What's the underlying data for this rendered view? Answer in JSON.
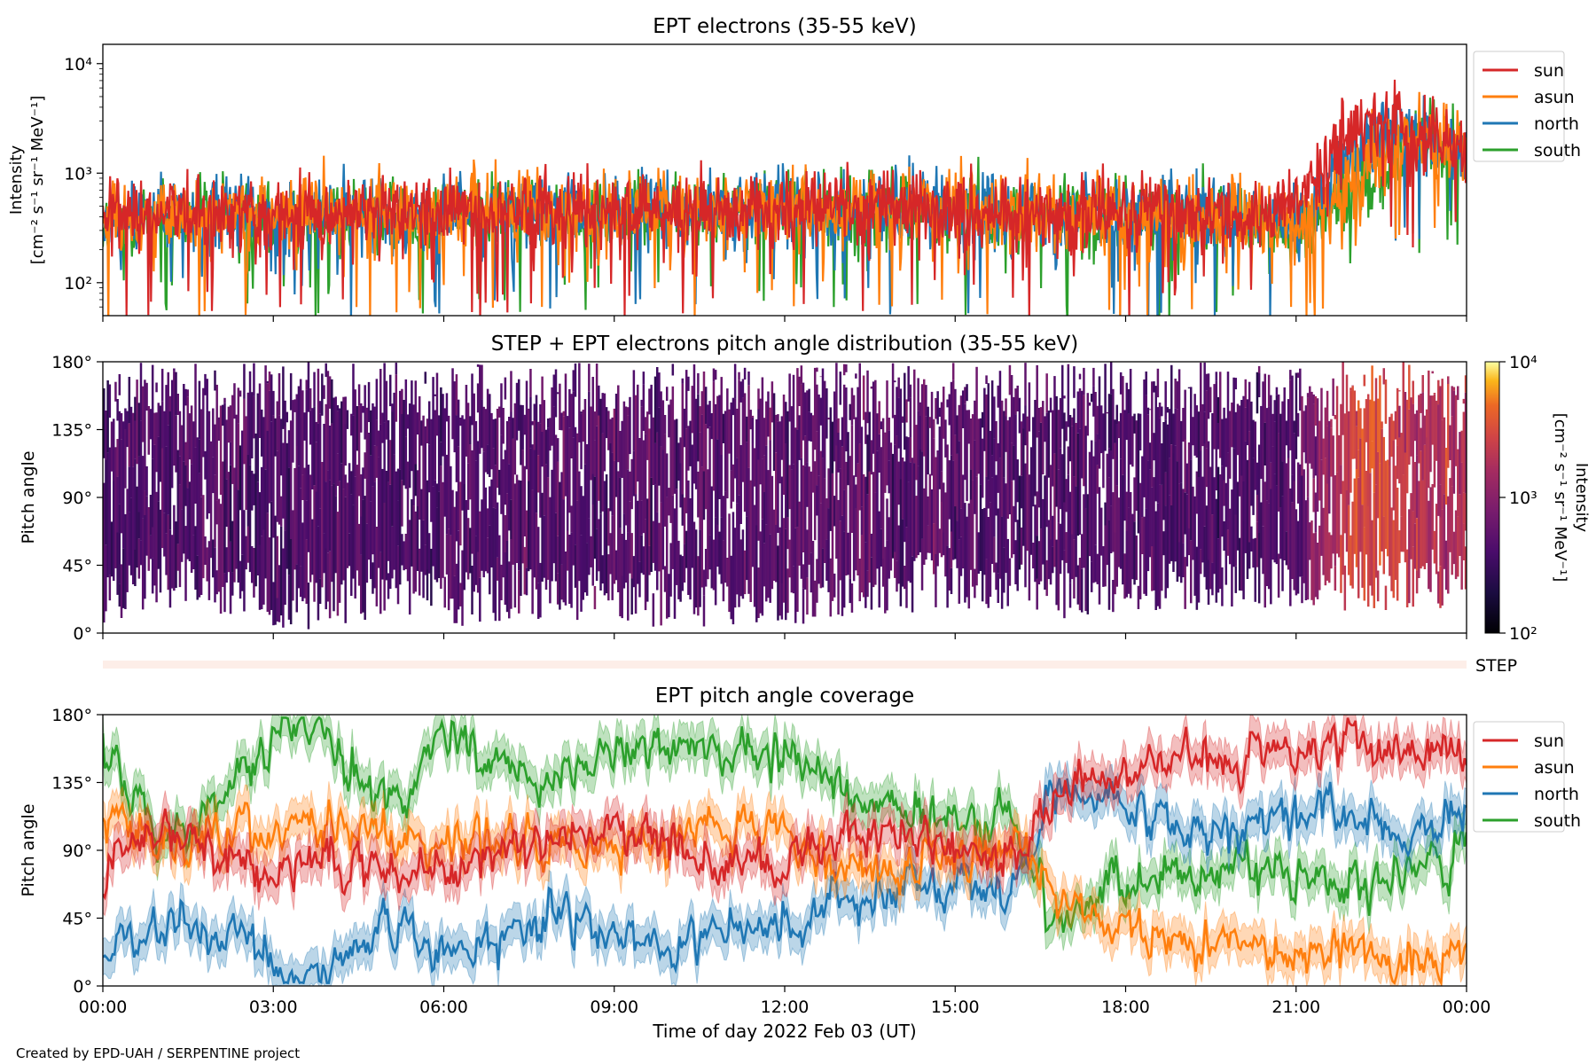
{
  "footer": "Created by EPD-UAH / SERPENTINE project",
  "x_axis": {
    "label": "Time of day 2022 Feb 03 (UT)",
    "ticks": [
      "00:00",
      "03:00",
      "06:00",
      "09:00",
      "12:00",
      "15:00",
      "18:00",
      "21:00",
      "00:00"
    ],
    "range_hours": [
      0,
      24
    ]
  },
  "colors": {
    "sun": "#d62728",
    "asun": "#ff7f0e",
    "north": "#1f77b4",
    "south": "#2ca02c"
  },
  "step_label": "STEP",
  "chart_data": [
    {
      "type": "line",
      "title": "EPT electrons (35-55 keV)",
      "ylabel_line1": "Intensity",
      "ylabel_line2": "[cm⁻² s⁻¹ sr⁻¹ MeV⁻¹]",
      "yscale": "log",
      "ylim": [
        50,
        15000
      ],
      "y_tick_labels": [
        "10⁴",
        "10³",
        "10²"
      ],
      "y_tick_values": [
        10000,
        1000,
        100
      ],
      "legend": [
        "sun",
        "asun",
        "north",
        "south"
      ],
      "legend_position": "upper-right-outside",
      "series": [
        {
          "name": "sun",
          "x_hours": [
            0,
            2,
            4,
            6,
            8,
            10,
            12,
            14,
            16,
            18,
            20,
            21,
            21.5,
            22,
            22.5,
            23,
            24
          ],
          "y": [
            400,
            450,
            420,
            460,
            480,
            470,
            520,
            500,
            460,
            440,
            420,
            450,
            1200,
            2500,
            3300,
            2000,
            1700
          ]
        },
        {
          "name": "asun",
          "x_hours": [
            0,
            2,
            4,
            6,
            8,
            10,
            12,
            14,
            16,
            18,
            20,
            21,
            21.5,
            22,
            22.5,
            23,
            24
          ],
          "y": [
            380,
            440,
            430,
            450,
            470,
            460,
            500,
            480,
            450,
            430,
            400,
            380,
            500,
            900,
            1500,
            2000,
            1800
          ]
        },
        {
          "name": "north",
          "x_hours": [
            0,
            2,
            4,
            6,
            8,
            10,
            12,
            14,
            16,
            18,
            20,
            21,
            21.5,
            22,
            22.5,
            23,
            24
          ],
          "y": [
            370,
            420,
            410,
            440,
            460,
            450,
            480,
            470,
            440,
            420,
            380,
            350,
            600,
            1500,
            2500,
            2200,
            1800
          ]
        },
        {
          "name": "south",
          "x_hours": [
            0,
            2,
            4,
            6,
            8,
            10,
            12,
            14,
            16,
            18,
            20,
            21,
            21.5,
            22,
            22.5,
            23,
            24
          ],
          "y": [
            360,
            410,
            400,
            430,
            450,
            440,
            470,
            460,
            430,
            410,
            370,
            300,
            450,
            700,
            1100,
            1700,
            1500
          ]
        }
      ]
    },
    {
      "type": "heatmap",
      "title": "STEP + EPT electrons pitch angle distribution (35-55 keV)",
      "ylabel": "Pitch angle",
      "ylim": [
        0,
        180
      ],
      "y_tick_labels": [
        "180°",
        "135°",
        "90°",
        "45°",
        "0°"
      ],
      "y_tick_values": [
        180,
        135,
        90,
        45,
        0
      ],
      "colorbar": {
        "scale": "log",
        "range": [
          100,
          10000
        ],
        "tick_labels": [
          "10⁴",
          "10³",
          "10²"
        ],
        "tick_values": [
          10000,
          1000,
          100
        ],
        "label_line1": "Intensity",
        "label_line2": "[cm⁻² s⁻¹ sr⁻¹ MeV⁻¹]",
        "colormap": "inferno"
      }
    },
    {
      "type": "line",
      "title": "EPT pitch angle coverage",
      "ylabel": "Pitch angle",
      "ylim": [
        0,
        180
      ],
      "y_tick_labels": [
        "180°",
        "135°",
        "90°",
        "45°",
        "0°"
      ],
      "y_tick_values": [
        180,
        135,
        90,
        45,
        0
      ],
      "legend": [
        "sun",
        "asun",
        "north",
        "south"
      ],
      "legend_position": "upper-right-outside",
      "series": [
        {
          "name": "sun",
          "x_hours": [
            0,
            1,
            2,
            3,
            4,
            5,
            6,
            7,
            8,
            9,
            10,
            11,
            12,
            13,
            14,
            15,
            16,
            16.7,
            17,
            18,
            19,
            20,
            21,
            22,
            23,
            24
          ],
          "y": [
            75,
            100,
            90,
            75,
            85,
            75,
            80,
            85,
            95,
            105,
            90,
            75,
            80,
            100,
            95,
            90,
            85,
            120,
            130,
            140,
            155,
            150,
            155,
            160,
            155,
            160
          ]
        },
        {
          "name": "asun",
          "x_hours": [
            0,
            1,
            2,
            3,
            4,
            5,
            6,
            7,
            8,
            9,
            10,
            11,
            12,
            13,
            14,
            15,
            16,
            16.7,
            17,
            18,
            19,
            20,
            21,
            22,
            23,
            24
          ],
          "y": [
            110,
            95,
            95,
            100,
            105,
            100,
            95,
            100,
            90,
            85,
            100,
            110,
            100,
            80,
            75,
            85,
            95,
            60,
            50,
            40,
            25,
            30,
            20,
            25,
            15,
            20
          ]
        },
        {
          "name": "north",
          "x_hours": [
            0,
            1,
            2,
            3,
            4,
            5,
            6,
            7,
            8,
            9,
            10,
            11,
            12,
            13,
            14,
            15,
            16,
            16.7,
            17,
            18,
            19,
            20,
            21,
            22,
            23,
            24
          ],
          "y": [
            20,
            45,
            40,
            15,
            10,
            40,
            25,
            30,
            50,
            30,
            25,
            35,
            40,
            55,
            65,
            70,
            60,
            130,
            130,
            120,
            105,
            100,
            110,
            115,
            100,
            110
          ]
        },
        {
          "name": "south",
          "x_hours": [
            0,
            1,
            2,
            3,
            4,
            5,
            6,
            7,
            8,
            9,
            10,
            11,
            12,
            13,
            14,
            15,
            16,
            16.7,
            17,
            18,
            19,
            20,
            21,
            22,
            23,
            24
          ],
          "y": [
            160,
            95,
            115,
            165,
            170,
            115,
            165,
            140,
            135,
            150,
            165,
            155,
            160,
            130,
            115,
            105,
            110,
            40,
            50,
            70,
            75,
            80,
            70,
            70,
            75,
            85
          ]
        }
      ]
    }
  ]
}
